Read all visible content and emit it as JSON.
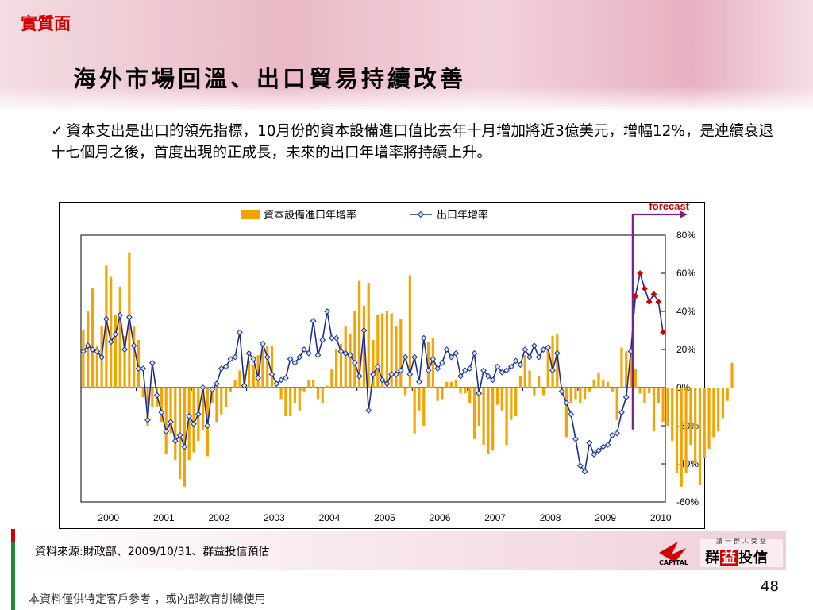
{
  "header": {
    "section_tag": "實質面",
    "title": "海外市場回溫、出口貿易持續改善"
  },
  "bullet": {
    "check": "✓",
    "text": "資本支出是出口的領先指標，10月份的資本設備進口值比去年十月增加將近3億美元，增幅12%，是連續衰退十七個月之後，首度出現的正成長，未來的出口年增率將持續上升。"
  },
  "chart_data": {
    "type": "bar",
    "annotation": "forecast",
    "x_tick_labels": [
      "2000",
      "2001",
      "2002",
      "2003",
      "2004",
      "2005",
      "2006",
      "2007",
      "2008",
      "2009",
      "2010"
    ],
    "y_tick_labels": [
      "80%",
      "60%",
      "40%",
      "20%",
      "0%",
      "-20%",
      "-40%",
      "-60%"
    ],
    "ylim": [
      -60,
      80
    ],
    "y_ticks": [
      80,
      60,
      40,
      20,
      0,
      -20,
      -40,
      -60
    ],
    "legend_position": "top",
    "colors": {
      "bars": "#f5a300",
      "line": "#1a2f8a",
      "marker_fill": "#cfe3ff",
      "forecast": "#7b1f8a",
      "forecast_marker": "#d40000"
    },
    "series": [
      {
        "name": "資本設備進口年增率",
        "kind": "bar",
        "values": [
          30,
          40,
          52,
          22,
          32,
          64,
          58,
          38,
          53,
          27,
          71,
          32,
          25,
          -5,
          -20,
          -10,
          -10,
          -18,
          -35,
          -24,
          -38,
          -48,
          -52,
          -38,
          -34,
          -28,
          -22,
          -36,
          -8,
          -18,
          -14,
          -10,
          -2,
          4,
          9,
          7,
          14,
          12,
          17,
          20,
          22,
          22,
          0,
          -6,
          -15,
          -15,
          -8,
          -12,
          -2,
          4,
          4,
          -6,
          -8,
          1,
          10,
          20,
          23,
          32,
          28,
          40,
          56,
          43,
          55,
          25,
          38,
          39,
          40,
          39,
          32,
          36,
          -4,
          59,
          -24,
          -12,
          -20,
          24,
          26,
          -7,
          -6,
          3,
          3,
          4,
          -3,
          -3,
          -8,
          -27,
          -20,
          -30,
          -35,
          -33,
          -9,
          -12,
          -30,
          -17,
          -15,
          6,
          17,
          9,
          -4,
          6,
          -4,
          20,
          27,
          28,
          -4,
          -26,
          -8,
          -6,
          -8,
          -6,
          -2,
          4,
          8,
          4,
          3,
          -2,
          -17,
          21,
          19,
          21,
          10,
          -3,
          -8,
          -3,
          -23,
          -8,
          -18,
          -20,
          -28,
          -45,
          -52,
          -45,
          -30,
          -40,
          -51,
          -37,
          -32,
          -26,
          -23,
          -16,
          -7,
          13
        ],
        "data_label_note": ""
      },
      {
        "name": "出口年增率",
        "kind": "line",
        "values": [
          19,
          22,
          20,
          19,
          16,
          36,
          24,
          28,
          38,
          20,
          37,
          22,
          10,
          10,
          -17,
          13,
          -4,
          -13,
          -23,
          -18,
          -28,
          -25,
          -31,
          -15,
          -19,
          -14,
          0,
          -20,
          -1,
          2,
          10,
          11,
          15,
          16,
          29,
          1,
          18,
          15,
          5,
          23,
          16,
          7,
          2,
          4,
          5,
          15,
          13,
          16,
          20,
          18,
          35,
          17,
          25,
          40,
          26,
          26,
          19,
          18,
          17,
          13,
          6,
          30,
          -12,
          7,
          11,
          4,
          2,
          7,
          7,
          9,
          16,
          7,
          16,
          3,
          26,
          9,
          15,
          10,
          13,
          20,
          16,
          18,
          6,
          9,
          10,
          18,
          -3,
          9,
          6,
          4,
          11,
          8,
          9,
          11,
          14,
          12,
          20,
          16,
          22,
          16,
          20,
          21,
          9,
          18,
          -2,
          -8,
          -14,
          -27,
          -41,
          -44,
          -29,
          -35,
          -33,
          -31,
          -30,
          -25,
          -24,
          -13,
          -5,
          19,
          48,
          60,
          52,
          45,
          49,
          45,
          29
        ],
        "forecast_start_index": 120
      }
    ]
  },
  "footer": {
    "source": "資料來源:財政部、2009/10/31、群益投信預估",
    "logo_slogan": "讓一群人受益",
    "logo_name_a": "群",
    "logo_name_b": "益",
    "logo_name_c": "投信",
    "logo_capital": "CAPITAL",
    "page_number": "48",
    "disclaimer": "本資料僅供特定客戶參考 ，或內部教育訓練使用"
  }
}
